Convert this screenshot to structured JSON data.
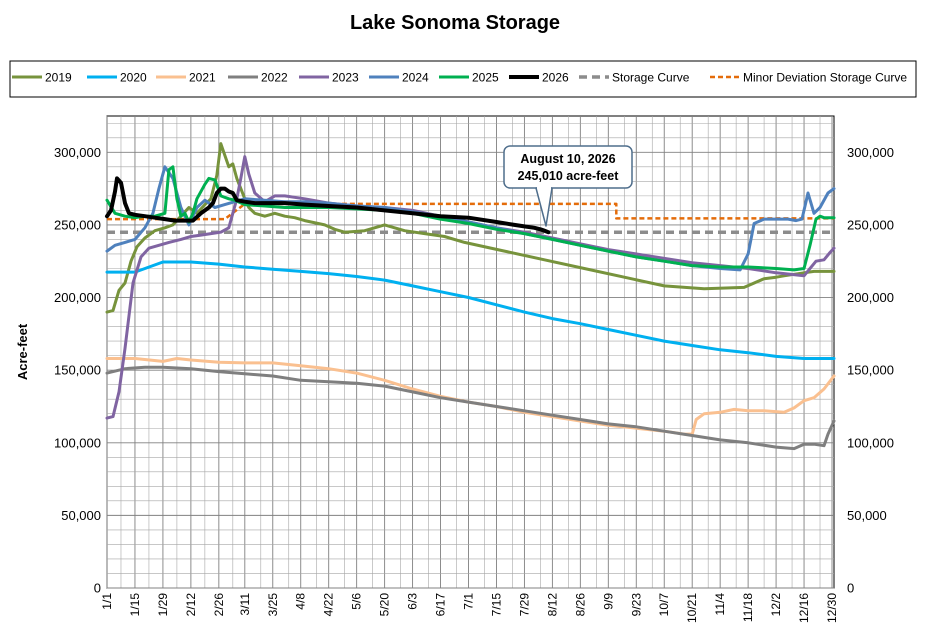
{
  "chart_data": {
    "type": "line",
    "title": "Lake Sonoma Storage",
    "ylabel": "Acre-feet",
    "xlabel": "",
    "ylim": [
      0,
      325000
    ],
    "yticks": [
      0,
      50000,
      100000,
      150000,
      200000,
      250000,
      300000
    ],
    "ytick_labels": [
      "0",
      "50,000",
      "100,000",
      "150,000",
      "200,000",
      "250,000",
      "300,000"
    ],
    "xlim": [
      1,
      365
    ],
    "x_unit": "day of year",
    "x_ticks": [
      {
        "day": 1,
        "label": "1/1"
      },
      {
        "day": 15,
        "label": "1/15"
      },
      {
        "day": 29,
        "label": "1/29"
      },
      {
        "day": 43,
        "label": "2/12"
      },
      {
        "day": 57,
        "label": "2/26"
      },
      {
        "day": 70,
        "label": "3/11"
      },
      {
        "day": 84,
        "label": "3/25"
      },
      {
        "day": 98,
        "label": "4/8"
      },
      {
        "day": 112,
        "label": "4/22"
      },
      {
        "day": 126,
        "label": "5/6"
      },
      {
        "day": 140,
        "label": "5/20"
      },
      {
        "day": 154,
        "label": "6/3"
      },
      {
        "day": 168,
        "label": "6/17"
      },
      {
        "day": 182,
        "label": "7/1"
      },
      {
        "day": 196,
        "label": "7/15"
      },
      {
        "day": 210,
        "label": "7/29"
      },
      {
        "day": 224,
        "label": "8/12"
      },
      {
        "day": 238,
        "label": "8/26"
      },
      {
        "day": 252,
        "label": "9/9"
      },
      {
        "day": 266,
        "label": "9/23"
      },
      {
        "day": 280,
        "label": "10/7"
      },
      {
        "day": 294,
        "label": "10/21"
      },
      {
        "day": 308,
        "label": "11/4"
      },
      {
        "day": 322,
        "label": "11/18"
      },
      {
        "day": 336,
        "label": "12/2"
      },
      {
        "day": 350,
        "label": "12/16"
      },
      {
        "day": 364,
        "label": "12/30"
      }
    ],
    "grid": true,
    "legend_position": "top",
    "annotation": {
      "lines": [
        "August 10, 2026",
        "245,010 acre-feet"
      ],
      "x": 222,
      "y": 245010
    },
    "series": [
      {
        "name": "2019",
        "color": "#77933C",
        "width": 3,
        "dash": "",
        "x": [
          1,
          4,
          7,
          10,
          13,
          16,
          20,
          25,
          30,
          34,
          38,
          42,
          46,
          50,
          53,
          56,
          58,
          60,
          62,
          64,
          66,
          68,
          70,
          72,
          75,
          80,
          85,
          90,
          95,
          100,
          110,
          115,
          120,
          130,
          140,
          150,
          160,
          170,
          180,
          200,
          220,
          240,
          260,
          280,
          300,
          320,
          330,
          336,
          340,
          345,
          350,
          355,
          360,
          365
        ],
        "y": [
          190000,
          191000,
          205000,
          210000,
          225000,
          235000,
          241000,
          246000,
          248000,
          250000,
          256000,
          262000,
          258000,
          264000,
          268000,
          284000,
          306000,
          298000,
          290000,
          292000,
          282000,
          275000,
          268000,
          262000,
          258000,
          256000,
          258000,
          256000,
          255000,
          253000,
          250000,
          247000,
          245000,
          246000,
          250000,
          246000,
          244000,
          242000,
          238000,
          232000,
          226000,
          220000,
          214000,
          208000,
          206000,
          207000,
          213000,
          214000,
          215000,
          216000,
          217000,
          218000,
          218000,
          218000
        ]
      },
      {
        "name": "2020",
        "color": "#00B0F0",
        "width": 3,
        "dash": "",
        "x": [
          1,
          15,
          29,
          43,
          57,
          70,
          84,
          98,
          112,
          126,
          140,
          154,
          168,
          182,
          196,
          210,
          224,
          238,
          252,
          266,
          280,
          294,
          308,
          322,
          336,
          350,
          365
        ],
        "y": [
          217500,
          217500,
          224500,
          224500,
          223000,
          221000,
          219500,
          218000,
          216500,
          214500,
          212000,
          208000,
          204000,
          200000,
          195000,
          190000,
          185500,
          182000,
          178000,
          174000,
          170000,
          167000,
          164000,
          162000,
          159500,
          158000,
          158000
        ]
      },
      {
        "name": "2021",
        "color": "#FAC090",
        "width": 3,
        "dash": "",
        "x": [
          1,
          15,
          29,
          36,
          43,
          57,
          70,
          84,
          98,
          112,
          126,
          140,
          154,
          168,
          182,
          196,
          210,
          224,
          238,
          252,
          266,
          280,
          290,
          294,
          296,
          300,
          308,
          315,
          322,
          330,
          340,
          345,
          350,
          355,
          360,
          365
        ],
        "y": [
          158000,
          158000,
          156000,
          158000,
          157000,
          155500,
          155000,
          155000,
          153000,
          151000,
          148000,
          143000,
          137000,
          132000,
          128000,
          125000,
          121000,
          118000,
          115000,
          112000,
          110000,
          108000,
          106000,
          106000,
          116000,
          120000,
          121000,
          123000,
          122000,
          122000,
          121000,
          124000,
          129000,
          131000,
          137000,
          146000
        ]
      },
      {
        "name": "2022",
        "color": "#7F7F7F",
        "width": 3,
        "dash": "",
        "x": [
          1,
          10,
          20,
          29,
          43,
          57,
          70,
          84,
          98,
          112,
          126,
          140,
          154,
          168,
          182,
          196,
          210,
          224,
          238,
          252,
          266,
          280,
          294,
          308,
          322,
          336,
          345,
          350,
          355,
          360,
          362,
          365
        ],
        "y": [
          148000,
          151000,
          152000,
          152000,
          151000,
          149000,
          147500,
          146000,
          143000,
          142000,
          141000,
          139000,
          135000,
          131000,
          128000,
          125000,
          122000,
          119000,
          116000,
          113000,
          111000,
          108000,
          105000,
          102000,
          100000,
          97000,
          96000,
          99000,
          99000,
          98000,
          106000,
          115000
        ]
      },
      {
        "name": "2023",
        "color": "#8064A2",
        "width": 3,
        "dash": "",
        "x": [
          1,
          4,
          7,
          10,
          14,
          18,
          22,
          27,
          32,
          38,
          43,
          48,
          53,
          58,
          62,
          66,
          68,
          70,
          72,
          75,
          80,
          85,
          90,
          100,
          112,
          126,
          140,
          154,
          168,
          182,
          196,
          210,
          224,
          238,
          252,
          266,
          280,
          294,
          308,
          322,
          336,
          350,
          356,
          360,
          363,
          365
        ],
        "y": [
          117000,
          118000,
          135000,
          165000,
          210000,
          228000,
          234000,
          236000,
          238000,
          240000,
          242000,
          243000,
          244000,
          245000,
          248000,
          268000,
          282000,
          297000,
          285000,
          272000,
          266000,
          270000,
          270000,
          268000,
          265000,
          263000,
          262000,
          260000,
          256000,
          252000,
          248000,
          245000,
          241000,
          237000,
          233000,
          230000,
          227000,
          224000,
          222000,
          220000,
          217000,
          215000,
          225000,
          226000,
          231000,
          234000
        ]
      },
      {
        "name": "2024",
        "color": "#4F81BD",
        "width": 3,
        "dash": "",
        "x": [
          1,
          5,
          10,
          15,
          20,
          24,
          27,
          30,
          34,
          38,
          42,
          46,
          50,
          55,
          60,
          65,
          70,
          80,
          90,
          100,
          112,
          126,
          140,
          154,
          168,
          182,
          196,
          210,
          224,
          238,
          252,
          266,
          280,
          294,
          308,
          318,
          322,
          325,
          330,
          336,
          342,
          346,
          349,
          352,
          355,
          358,
          362,
          365
        ],
        "y": [
          232000,
          236000,
          238000,
          240000,
          248000,
          258000,
          275000,
          290000,
          282000,
          262000,
          250000,
          262000,
          267000,
          262000,
          264000,
          266000,
          268000,
          267000,
          266000,
          266000,
          265000,
          263000,
          262000,
          259000,
          256000,
          252000,
          248000,
          244000,
          240000,
          236000,
          232000,
          228000,
          225000,
          222000,
          220000,
          219000,
          230000,
          251000,
          254000,
          254000,
          254000,
          253000,
          254000,
          272000,
          258000,
          262000,
          272000,
          275000
        ]
      },
      {
        "name": "2025",
        "color": "#00B050",
        "width": 3,
        "dash": "",
        "x": [
          1,
          5,
          10,
          15,
          20,
          25,
          30,
          32,
          34,
          36,
          38,
          40,
          42,
          44,
          46,
          50,
          52,
          55,
          58,
          62,
          65,
          70,
          80,
          90,
          100,
          112,
          126,
          140,
          154,
          168,
          182,
          196,
          210,
          224,
          238,
          252,
          266,
          280,
          294,
          308,
          322,
          336,
          345,
          350,
          353,
          356,
          358,
          360,
          363,
          365
        ],
        "y": [
          267000,
          258000,
          256000,
          255000,
          256000,
          256000,
          258000,
          288000,
          290000,
          268000,
          256000,
          258000,
          252000,
          258000,
          268000,
          278000,
          282000,
          281000,
          270000,
          268000,
          267000,
          264000,
          263000,
          262000,
          262000,
          262000,
          261000,
          260000,
          258000,
          254000,
          251000,
          247000,
          244000,
          240000,
          236000,
          232000,
          228000,
          225000,
          222000,
          221000,
          221000,
          220000,
          219000,
          220000,
          236000,
          254000,
          256000,
          255000,
          255000,
          255000
        ]
      },
      {
        "name": "2026",
        "color": "#000000",
        "width": 4,
        "dash": "",
        "x": [
          1,
          3,
          5,
          6,
          8,
          10,
          12,
          15,
          20,
          25,
          30,
          35,
          40,
          44,
          48,
          52,
          54,
          56,
          58,
          60,
          62,
          64,
          66,
          70,
          75,
          80,
          90,
          100,
          112,
          126,
          140,
          154,
          168,
          182,
          196,
          205,
          210,
          215,
          218,
          220,
          222
        ],
        "y": [
          256000,
          260000,
          273000,
          282000,
          279000,
          265000,
          258000,
          257000,
          256000,
          255000,
          254000,
          253000,
          253000,
          253000,
          258000,
          262000,
          265000,
          272000,
          275000,
          275000,
          273000,
          272000,
          267000,
          266000,
          265000,
          265000,
          265000,
          264000,
          263000,
          262000,
          260000,
          258000,
          256000,
          255000,
          252000,
          250000,
          249000,
          248000,
          247000,
          246000,
          245010
        ]
      },
      {
        "name": "Storage Curve",
        "color": "#8C8C8C",
        "width": 3.5,
        "dash": "8,5",
        "x": [
          1,
          365
        ],
        "y": [
          245000,
          245000
        ]
      },
      {
        "name": "Minor Deviation Storage Curve",
        "color": "#E46C0A",
        "width": 2.5,
        "dash": "5,3",
        "x": [
          1,
          60,
          70,
          256,
          256,
          365
        ],
        "y": [
          254000,
          254000,
          264500,
          264500,
          254500,
          254500
        ]
      }
    ]
  }
}
